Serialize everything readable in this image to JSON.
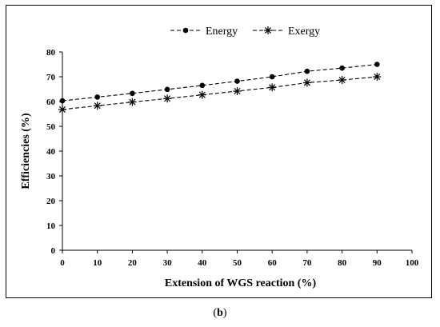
{
  "chart_data": {
    "type": "line",
    "xlabel": "Extension of WGS reaction (%)",
    "ylabel": "Efficiencies (%)",
    "xlim": [
      0,
      100
    ],
    "ylim": [
      0,
      80
    ],
    "x_ticks": [
      "0",
      "10",
      "20",
      "30",
      "40",
      "50",
      "60",
      "70",
      "80",
      "90",
      "100"
    ],
    "y_ticks": [
      "0",
      "10",
      "20",
      "30",
      "40",
      "50",
      "60",
      "70",
      "80"
    ],
    "grid": false,
    "legend": "top-center",
    "x": [
      0,
      10,
      20,
      30,
      40,
      50,
      60,
      70,
      80,
      90
    ],
    "series": [
      {
        "name": "Energy",
        "marker": "circle",
        "color": "#000000",
        "values": [
          60.3,
          61.8,
          63.3,
          64.9,
          66.5,
          68.2,
          70.0,
          72.2,
          73.5,
          75.0
        ]
      },
      {
        "name": "Exergy",
        "marker": "asterisk",
        "color": "#000000",
        "values": [
          56.8,
          58.3,
          59.8,
          61.2,
          62.7,
          64.2,
          65.7,
          67.6,
          68.7,
          70.0
        ]
      }
    ]
  },
  "caption": {
    "open": "(",
    "label": "b",
    "close": ")"
  }
}
